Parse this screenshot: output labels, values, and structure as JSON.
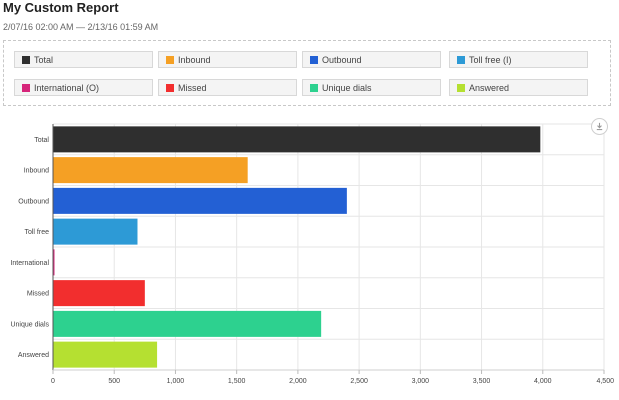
{
  "report": {
    "title": "My Custom Report",
    "date_range": "2/07/16  02:00 AM — 2/13/16  01:59 AM"
  },
  "legend": [
    {
      "label": "Total",
      "color": "#2f2f2f"
    },
    {
      "label": "Inbound",
      "color": "#f5a024"
    },
    {
      "label": "Outbound",
      "color": "#2360d4"
    },
    {
      "label": "Toll free (I)",
      "color": "#2d9ad6"
    },
    {
      "label": "International (O)",
      "color": "#d6257a"
    },
    {
      "label": "Missed",
      "color": "#f22e2e"
    },
    {
      "label": "Unique dials",
      "color": "#2dd18f"
    },
    {
      "label": "Answered",
      "color": "#b5e031"
    }
  ],
  "toolbar": {
    "download_icon": "download-icon"
  },
  "chart_data": {
    "type": "bar",
    "orientation": "horizontal",
    "categories": [
      "Total",
      "Inbound",
      "Outbound",
      "Toll free",
      "International",
      "Missed",
      "Unique dials",
      "Answered"
    ],
    "values": [
      3980,
      1590,
      2400,
      690,
      10,
      750,
      2190,
      850
    ],
    "colors": [
      "#2f2f2f",
      "#f5a024",
      "#2360d4",
      "#2d9ad6",
      "#d6257a",
      "#f22e2e",
      "#2dd18f",
      "#b5e031"
    ],
    "xlim": [
      0,
      4500
    ],
    "xticks": [
      0,
      500,
      1000,
      1500,
      2000,
      2500,
      3000,
      3500,
      4000,
      4500
    ],
    "xtick_labels": [
      "0",
      "500",
      "1,000",
      "1,500",
      "2,000",
      "2,500",
      "3,000",
      "3,500",
      "4,000",
      "4,500"
    ],
    "grid": true,
    "legend_position": "top"
  }
}
